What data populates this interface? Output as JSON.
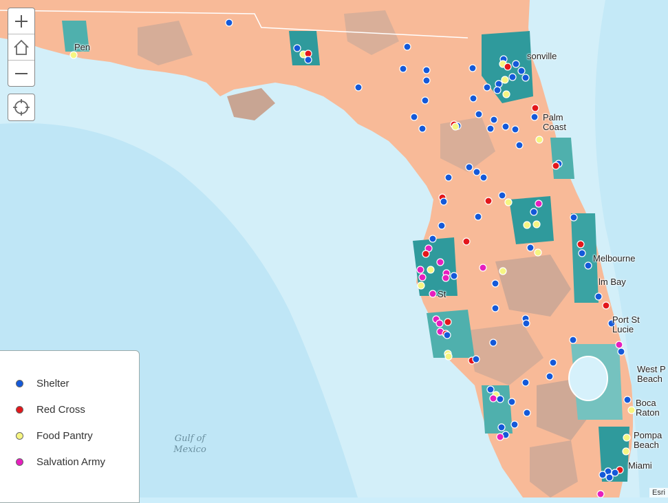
{
  "controls": {
    "zoom_in": "+",
    "home": "home-icon",
    "zoom_out": "−",
    "locate": "locate-icon"
  },
  "legend": {
    "items": [
      {
        "label": "Shelter",
        "color": "#1459d9"
      },
      {
        "label": "Red Cross",
        "color": "#e3171b"
      },
      {
        "label": "Food Pantry",
        "color": "#f6f582"
      },
      {
        "label": "Salvation Army",
        "color": "#e61fbe"
      }
    ]
  },
  "labels": {
    "jacksonville": "sonville",
    "palm_coast": "Palm\nCoast",
    "melbourne": "Melbourne",
    "palm_bay": "lm Bay",
    "port_st_lucie": "Port St\nLucie",
    "west_palm": "West P\nBeach",
    "boca": "Boca\nRaton",
    "pompano": "Pompa\nBeach",
    "miami": "Miami",
    "stpete": "St",
    "pensacola": "Pen",
    "gulf": "Gulf of\nMexico"
  },
  "attribution": "Esri",
  "colors": {
    "water": "#d6f1fb",
    "deep_water": "#b9e4f5",
    "land_light": "#f8b996",
    "land_dark": "#c9a691",
    "teal": "#2f9a9c",
    "teal_light": "#75c2bf"
  }
}
